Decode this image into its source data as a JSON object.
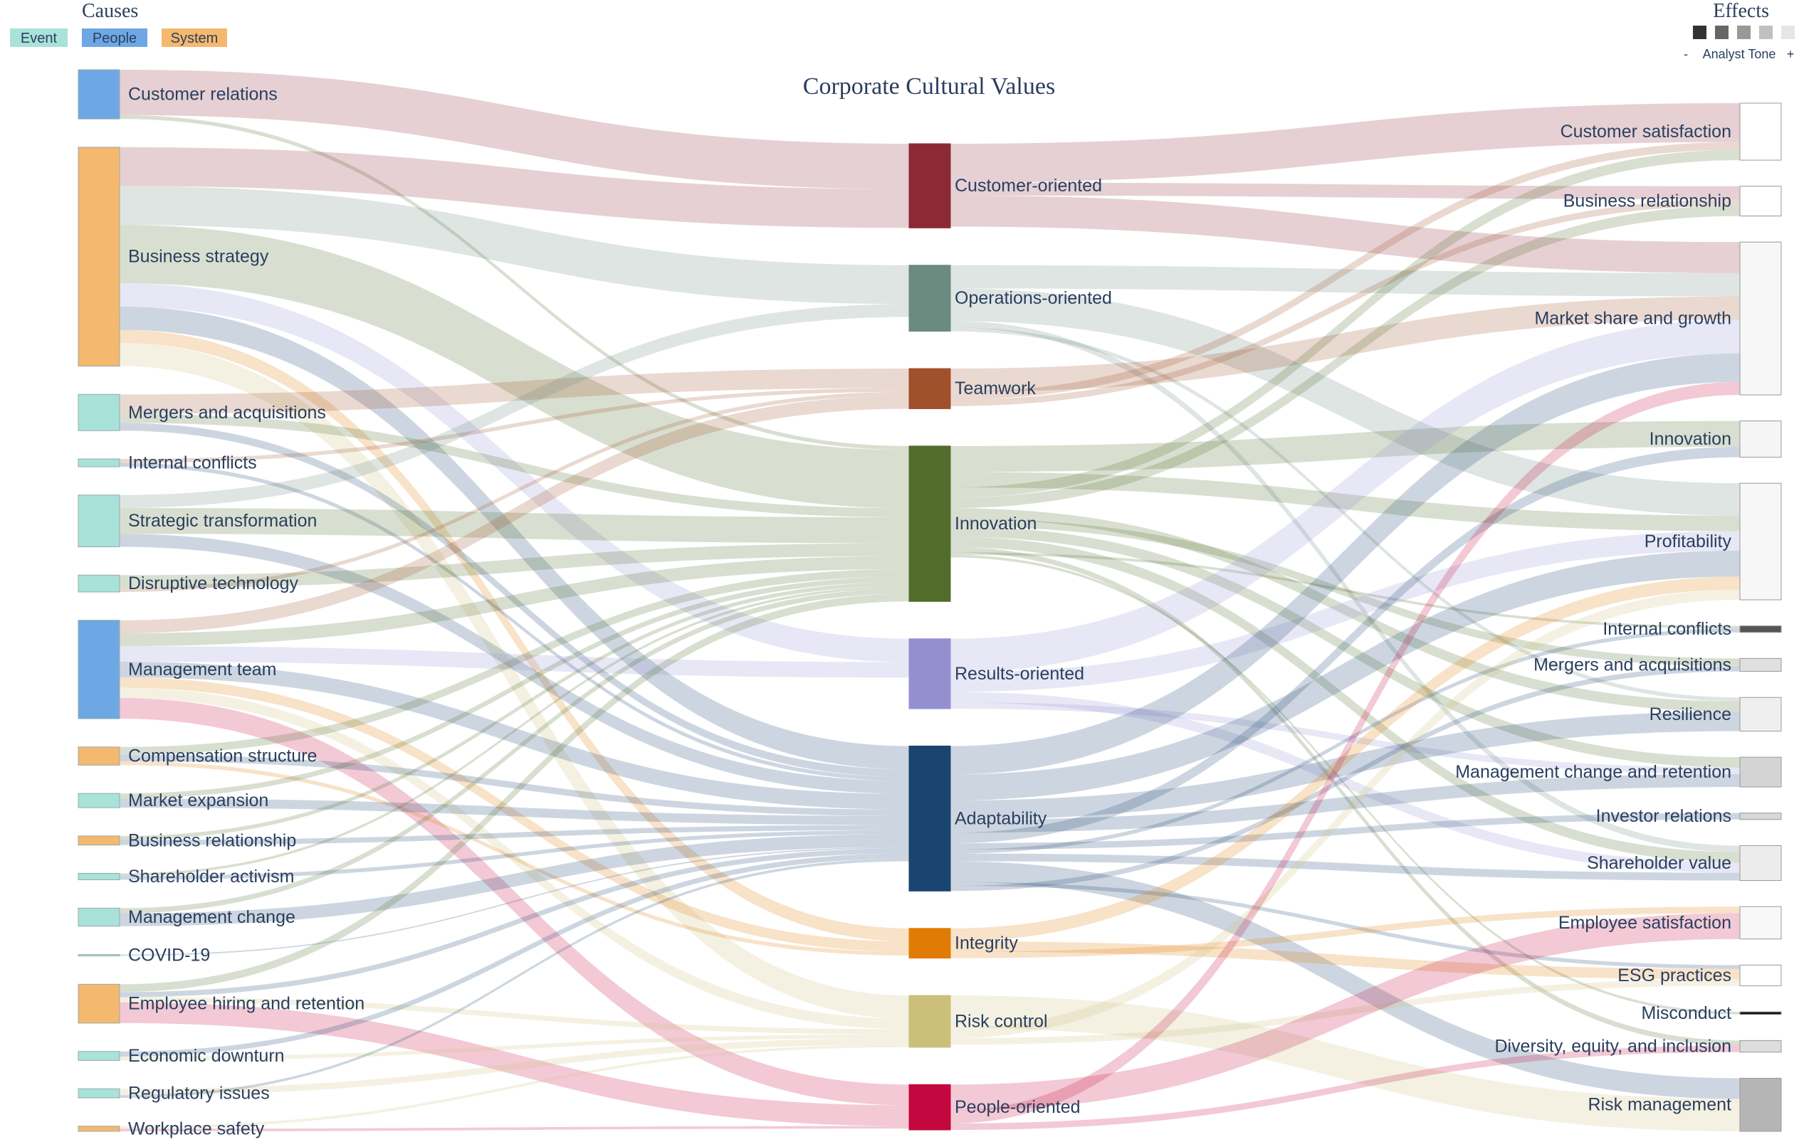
{
  "title": "Corporate Cultural Values",
  "causes_heading": "Causes",
  "effects_heading": "Effects",
  "legend_causes": [
    {
      "label": "Event",
      "color": "#a8e2d8"
    },
    {
      "label": "People",
      "color": "#6ea8e4"
    },
    {
      "label": "System",
      "color": "#f4b86e"
    }
  ],
  "tone_legend": {
    "label": "Analyst Tone",
    "minus": "-",
    "plus": "+",
    "swatches": [
      "#333333",
      "#666666",
      "#999999",
      "#c0c0c0",
      "#e6e6e6"
    ]
  },
  "causes": [
    {
      "label": "Customer relations",
      "type": "People"
    },
    {
      "label": "Business strategy",
      "type": "System"
    },
    {
      "label": "Mergers and acquisitions",
      "type": "Event"
    },
    {
      "label": "Internal conflicts",
      "type": "Event"
    },
    {
      "label": "Strategic transformation",
      "type": "Event"
    },
    {
      "label": "Disruptive technology",
      "type": "Event"
    },
    {
      "label": "Management team",
      "type": "People"
    },
    {
      "label": "Compensation structure",
      "type": "System"
    },
    {
      "label": "Market expansion",
      "type": "Event"
    },
    {
      "label": "Business relationship",
      "type": "System"
    },
    {
      "label": "Shareholder activism",
      "type": "Event"
    },
    {
      "label": "Management change",
      "type": "Event"
    },
    {
      "label": "COVID-19",
      "type": "Event"
    },
    {
      "label": "Employee hiring and retention",
      "type": "System"
    },
    {
      "label": "Economic downturn",
      "type": "Event"
    },
    {
      "label": "Regulatory issues",
      "type": "Event"
    },
    {
      "label": "Workplace safety",
      "type": "System"
    }
  ],
  "values": [
    {
      "label": "Customer-oriented",
      "color": "#8b2a35"
    },
    {
      "label": "Operations-oriented",
      "color": "#6b8a80"
    },
    {
      "label": "Teamwork",
      "color": "#a0502a"
    },
    {
      "label": "Innovation",
      "color": "#526d2b"
    },
    {
      "label": "Results-oriented",
      "color": "#9490d0"
    },
    {
      "label": "Adaptability",
      "color": "#1a4570"
    },
    {
      "label": "Integrity",
      "color": "#e07c05"
    },
    {
      "label": "Risk control",
      "color": "#cbc07a"
    },
    {
      "label": "People-oriented",
      "color": "#c2083e"
    }
  ],
  "effects": [
    {
      "label": "Customer satisfaction",
      "color": "#ffffff"
    },
    {
      "label": "Business relationship",
      "color": "#ffffff"
    },
    {
      "label": "Market share and growth",
      "color": "#f7f7f7"
    },
    {
      "label": "Innovation",
      "color": "#f5f5f5"
    },
    {
      "label": "Profitability",
      "color": "#f7f7f7"
    },
    {
      "label": "Internal conflicts",
      "color": "#555555"
    },
    {
      "label": "Mergers and acquisitions",
      "color": "#e0e0e0"
    },
    {
      "label": "Resilience",
      "color": "#efefef"
    },
    {
      "label": "Management change and retention",
      "color": "#d4d4d4"
    },
    {
      "label": "Investor relations",
      "color": "#d8d8d8"
    },
    {
      "label": "Shareholder value",
      "color": "#ececec"
    },
    {
      "label": "Employee satisfaction",
      "color": "#f8f8f8"
    },
    {
      "label": "ESG practices",
      "color": "#ffffff"
    },
    {
      "label": "Misconduct",
      "color": "#111111"
    },
    {
      "label": "Diversity, equity, and inclusion",
      "color": "#dddddd"
    },
    {
      "label": "Risk management",
      "color": "#b5b5b5"
    }
  ],
  "flows_in": [
    [
      0,
      0,
      35
    ],
    [
      0,
      3,
      3
    ],
    [
      1,
      0,
      30
    ],
    [
      1,
      1,
      30
    ],
    [
      1,
      3,
      45
    ],
    [
      1,
      4,
      18
    ],
    [
      1,
      5,
      18
    ],
    [
      1,
      6,
      10
    ],
    [
      1,
      7,
      18
    ],
    [
      2,
      2,
      15
    ],
    [
      2,
      3,
      7
    ],
    [
      2,
      5,
      6
    ],
    [
      3,
      2,
      3
    ],
    [
      3,
      5,
      3
    ],
    [
      4,
      1,
      10
    ],
    [
      4,
      3,
      20
    ],
    [
      4,
      5,
      10
    ],
    [
      5,
      3,
      10
    ],
    [
      5,
      2,
      3
    ],
    [
      6,
      2,
      10
    ],
    [
      6,
      3,
      10
    ],
    [
      6,
      4,
      12
    ],
    [
      6,
      5,
      12
    ],
    [
      6,
      6,
      8
    ],
    [
      6,
      7,
      8
    ],
    [
      6,
      8,
      16
    ],
    [
      7,
      3,
      6
    ],
    [
      7,
      5,
      5
    ],
    [
      7,
      6,
      3
    ],
    [
      8,
      3,
      4
    ],
    [
      8,
      5,
      7
    ],
    [
      9,
      3,
      3
    ],
    [
      9,
      5,
      4
    ],
    [
      10,
      3,
      2
    ],
    [
      10,
      5,
      3
    ],
    [
      11,
      3,
      4
    ],
    [
      11,
      5,
      10
    ],
    [
      12,
      5,
      1
    ],
    [
      13,
      3,
      6
    ],
    [
      13,
      5,
      4
    ],
    [
      13,
      7,
      4
    ],
    [
      13,
      8,
      16
    ],
    [
      14,
      5,
      4
    ],
    [
      14,
      7,
      3
    ],
    [
      15,
      7,
      5
    ],
    [
      15,
      5,
      2
    ],
    [
      16,
      7,
      2
    ],
    [
      16,
      8,
      2
    ]
  ],
  "flows_out": [
    [
      0,
      0,
      30
    ],
    [
      0,
      1,
      10
    ],
    [
      0,
      2,
      24
    ],
    [
      1,
      2,
      18
    ],
    [
      1,
      4,
      25
    ],
    [
      1,
      10,
      5
    ],
    [
      1,
      7,
      3
    ],
    [
      2,
      2,
      18
    ],
    [
      2,
      0,
      6
    ],
    [
      2,
      1,
      5
    ],
    [
      3,
      3,
      20
    ],
    [
      3,
      4,
      12
    ],
    [
      3,
      0,
      8
    ],
    [
      3,
      1,
      8
    ],
    [
      3,
      7,
      8
    ],
    [
      3,
      6,
      6
    ],
    [
      3,
      8,
      8
    ],
    [
      3,
      10,
      8
    ],
    [
      3,
      14,
      4
    ],
    [
      3,
      5,
      2
    ],
    [
      3,
      13,
      2
    ],
    [
      4,
      2,
      26
    ],
    [
      4,
      4,
      15
    ],
    [
      4,
      10,
      8
    ],
    [
      4,
      8,
      5
    ],
    [
      5,
      2,
      22
    ],
    [
      5,
      4,
      20
    ],
    [
      5,
      7,
      15
    ],
    [
      5,
      8,
      10
    ],
    [
      5,
      3,
      8
    ],
    [
      5,
      9,
      5
    ],
    [
      5,
      5,
      3
    ],
    [
      5,
      10,
      6
    ],
    [
      5,
      15,
      16
    ],
    [
      5,
      12,
      3
    ],
    [
      5,
      6,
      4
    ],
    [
      6,
      4,
      10
    ],
    [
      6,
      12,
      8
    ],
    [
      6,
      11,
      5
    ],
    [
      7,
      15,
      25
    ],
    [
      7,
      4,
      8
    ],
    [
      7,
      12,
      5
    ],
    [
      8,
      11,
      20
    ],
    [
      8,
      2,
      10
    ],
    [
      8,
      14,
      5
    ]
  ]
}
